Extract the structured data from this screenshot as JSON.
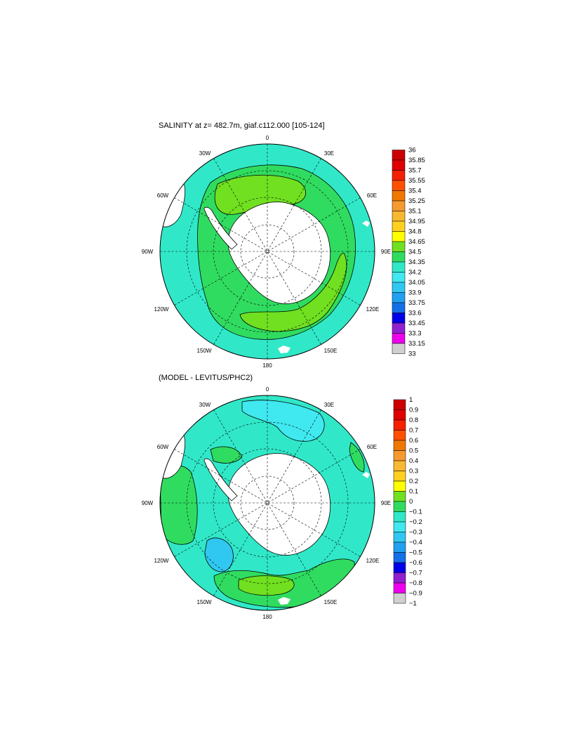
{
  "panels": [
    {
      "title": "SALINITY at z= 482.7m, giaf.c112.000 [105-124]",
      "lon_labels": [
        "0",
        "30E",
        "60E",
        "90E",
        "120E",
        "150E",
        "180",
        "150W",
        "120W",
        "90W",
        "60W",
        "30W"
      ],
      "colorbar": {
        "labels": [
          "36",
          "35.85",
          "35.7",
          "35.55",
          "35.4",
          "35.25",
          "35.1",
          "34.95",
          "34.8",
          "34.65",
          "34.5",
          "34.35",
          "34.2",
          "34.05",
          "33.9",
          "33.75",
          "33.6",
          "33.45",
          "33.3",
          "33.15",
          "33"
        ],
        "colors": [
          "#cc0000",
          "#e00000",
          "#f52000",
          "#ff5000",
          "#f07800",
          "#f59a30",
          "#f8b830",
          "#ffd020",
          "#ffff00",
          "#70e020",
          "#30dc60",
          "#30e8c8",
          "#40e8f0",
          "#30c8f0",
          "#20a0f0",
          "#1470e8",
          "#0000e8",
          "#9020d0",
          "#ee00ee",
          "#d0d0d0",
          "#707070"
        ]
      }
    },
    {
      "title": "(MODEL - LEVITUS/PHC2)",
      "lon_labels": [
        "0",
        "30E",
        "60E",
        "90E",
        "120E",
        "150E",
        "180",
        "150W",
        "120W",
        "90W",
        "60W",
        "30W"
      ],
      "colorbar": {
        "labels": [
          "1",
          "0.9",
          "0.8",
          "0.7",
          "0.6",
          "0.5",
          "0.4",
          "0.3",
          "0.2",
          "0.1",
          "0",
          "−0.1",
          "−0.2",
          "−0.3",
          "−0.4",
          "−0.5",
          "−0.6",
          "−0.7",
          "−0.8",
          "−0.9",
          "−1"
        ],
        "colors": [
          "#cc0000",
          "#e00000",
          "#f52000",
          "#ff5000",
          "#f07800",
          "#f59a30",
          "#f8b830",
          "#ffd020",
          "#ffff00",
          "#70e020",
          "#30dc60",
          "#30e8c8",
          "#40e8f0",
          "#30c8f0",
          "#20a0f0",
          "#1470e8",
          "#0000e8",
          "#9020d0",
          "#ee00ee",
          "#d0d0d0",
          "#707070"
        ]
      }
    }
  ],
  "style": {
    "ocean_base": "#30e8c8",
    "land": "#ffffff",
    "contour_line": "#000000",
    "grid_line": "#000000"
  }
}
